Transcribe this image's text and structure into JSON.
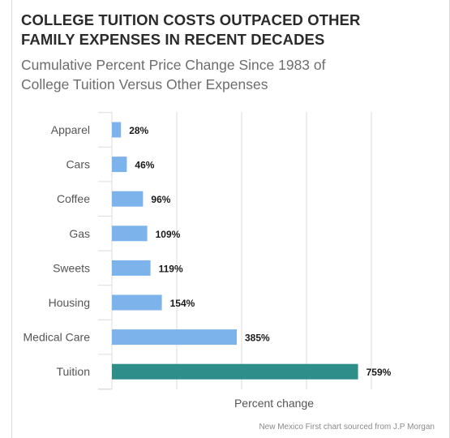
{
  "header": {
    "title_line1": "COLLEGE TUITION COSTS OUTPACED OTHER",
    "title_line2": "FAMILY EXPENSES IN RECENT DECADES",
    "subtitle_line1": "Cumulative Percent Price Change Since 1983 of",
    "subtitle_line2": "College Tuition Versus Other Expenses"
  },
  "footer": {
    "source": "New Mexico First chart sourced from J.P Morgan"
  },
  "colors": {
    "bar": "#7cb3ea",
    "highlight_bar": "#2e8e8a",
    "gridline": "#dcdcdc",
    "axis_label": "#555555",
    "value_label": "#1a1a1a"
  },
  "chart_data": {
    "type": "bar",
    "orientation": "horizontal",
    "title": "COLLEGE TUITION COSTS OUTPACED OTHER FAMILY EXPENSES IN RECENT DECADES",
    "subtitle": "Cumulative Percent Price Change Since 1983 of College Tuition Versus Other Expenses",
    "categories": [
      "Apparel",
      "Cars",
      "Coffee",
      "Gas",
      "Sweets",
      "Housing",
      "Medical Care",
      "Tuition"
    ],
    "values": [
      28,
      46,
      96,
      109,
      119,
      154,
      385,
      759
    ],
    "value_labels": [
      "28%",
      "46%",
      "96%",
      "109%",
      "119%",
      "154%",
      "385%",
      "759%"
    ],
    "highlight": "Tuition",
    "xlabel": "Percent change",
    "ylabel": "",
    "xlim": [
      0,
      800
    ],
    "grid": true,
    "gridlines_at": [
      0,
      200,
      400,
      600,
      800
    ],
    "legend": "none"
  }
}
